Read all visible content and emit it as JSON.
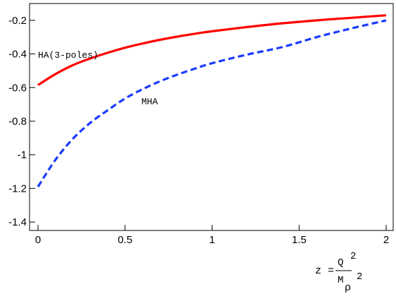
{
  "chart_data": {
    "type": "line",
    "title": "",
    "xlim": [
      0,
      2
    ],
    "ylim": [
      -1.45,
      -0.1
    ],
    "x_ticks": [
      0,
      0.5,
      1,
      1.5,
      2
    ],
    "x_tick_labels": [
      "0",
      "0.5",
      "1",
      "1.5",
      "2"
    ],
    "y_ticks": [
      -0.2,
      -0.4,
      -0.6,
      -0.8,
      -1,
      -1.2,
      -1.4
    ],
    "y_tick_labels": [
      "-0.2",
      "-0.4",
      "-0.6",
      "-0.8",
      "-1",
      "-1.2",
      "-1.4"
    ],
    "grid": false,
    "xlabel": {
      "lhs": "z =",
      "numerator": "Q",
      "numerator_exp": "2",
      "denominator": "M",
      "denominator_sub": "ρ",
      "denominator_exp": "2"
    },
    "x": [
      0,
      0.1,
      0.2,
      0.3,
      0.4,
      0.5,
      0.6,
      0.7,
      0.8,
      0.9,
      1.0,
      1.2,
      1.4,
      1.6,
      1.8,
      2.0
    ],
    "series": [
      {
        "name": "HA(3-poles)",
        "color": "#ff0000",
        "style": "solid",
        "values": [
          -0.585,
          -0.52,
          -0.467,
          -0.427,
          -0.393,
          -0.363,
          -0.338,
          -0.316,
          -0.297,
          -0.28,
          -0.265,
          -0.24,
          -0.218,
          -0.2,
          -0.185,
          -0.17
        ]
      },
      {
        "name": "MHA",
        "color": "#1a3bff",
        "style": "dashed",
        "values": [
          -1.19,
          -1.03,
          -0.905,
          -0.81,
          -0.735,
          -0.665,
          -0.61,
          -0.563,
          -0.523,
          -0.488,
          -0.455,
          -0.404,
          -0.36,
          -0.3,
          -0.248,
          -0.2
        ]
      }
    ]
  }
}
